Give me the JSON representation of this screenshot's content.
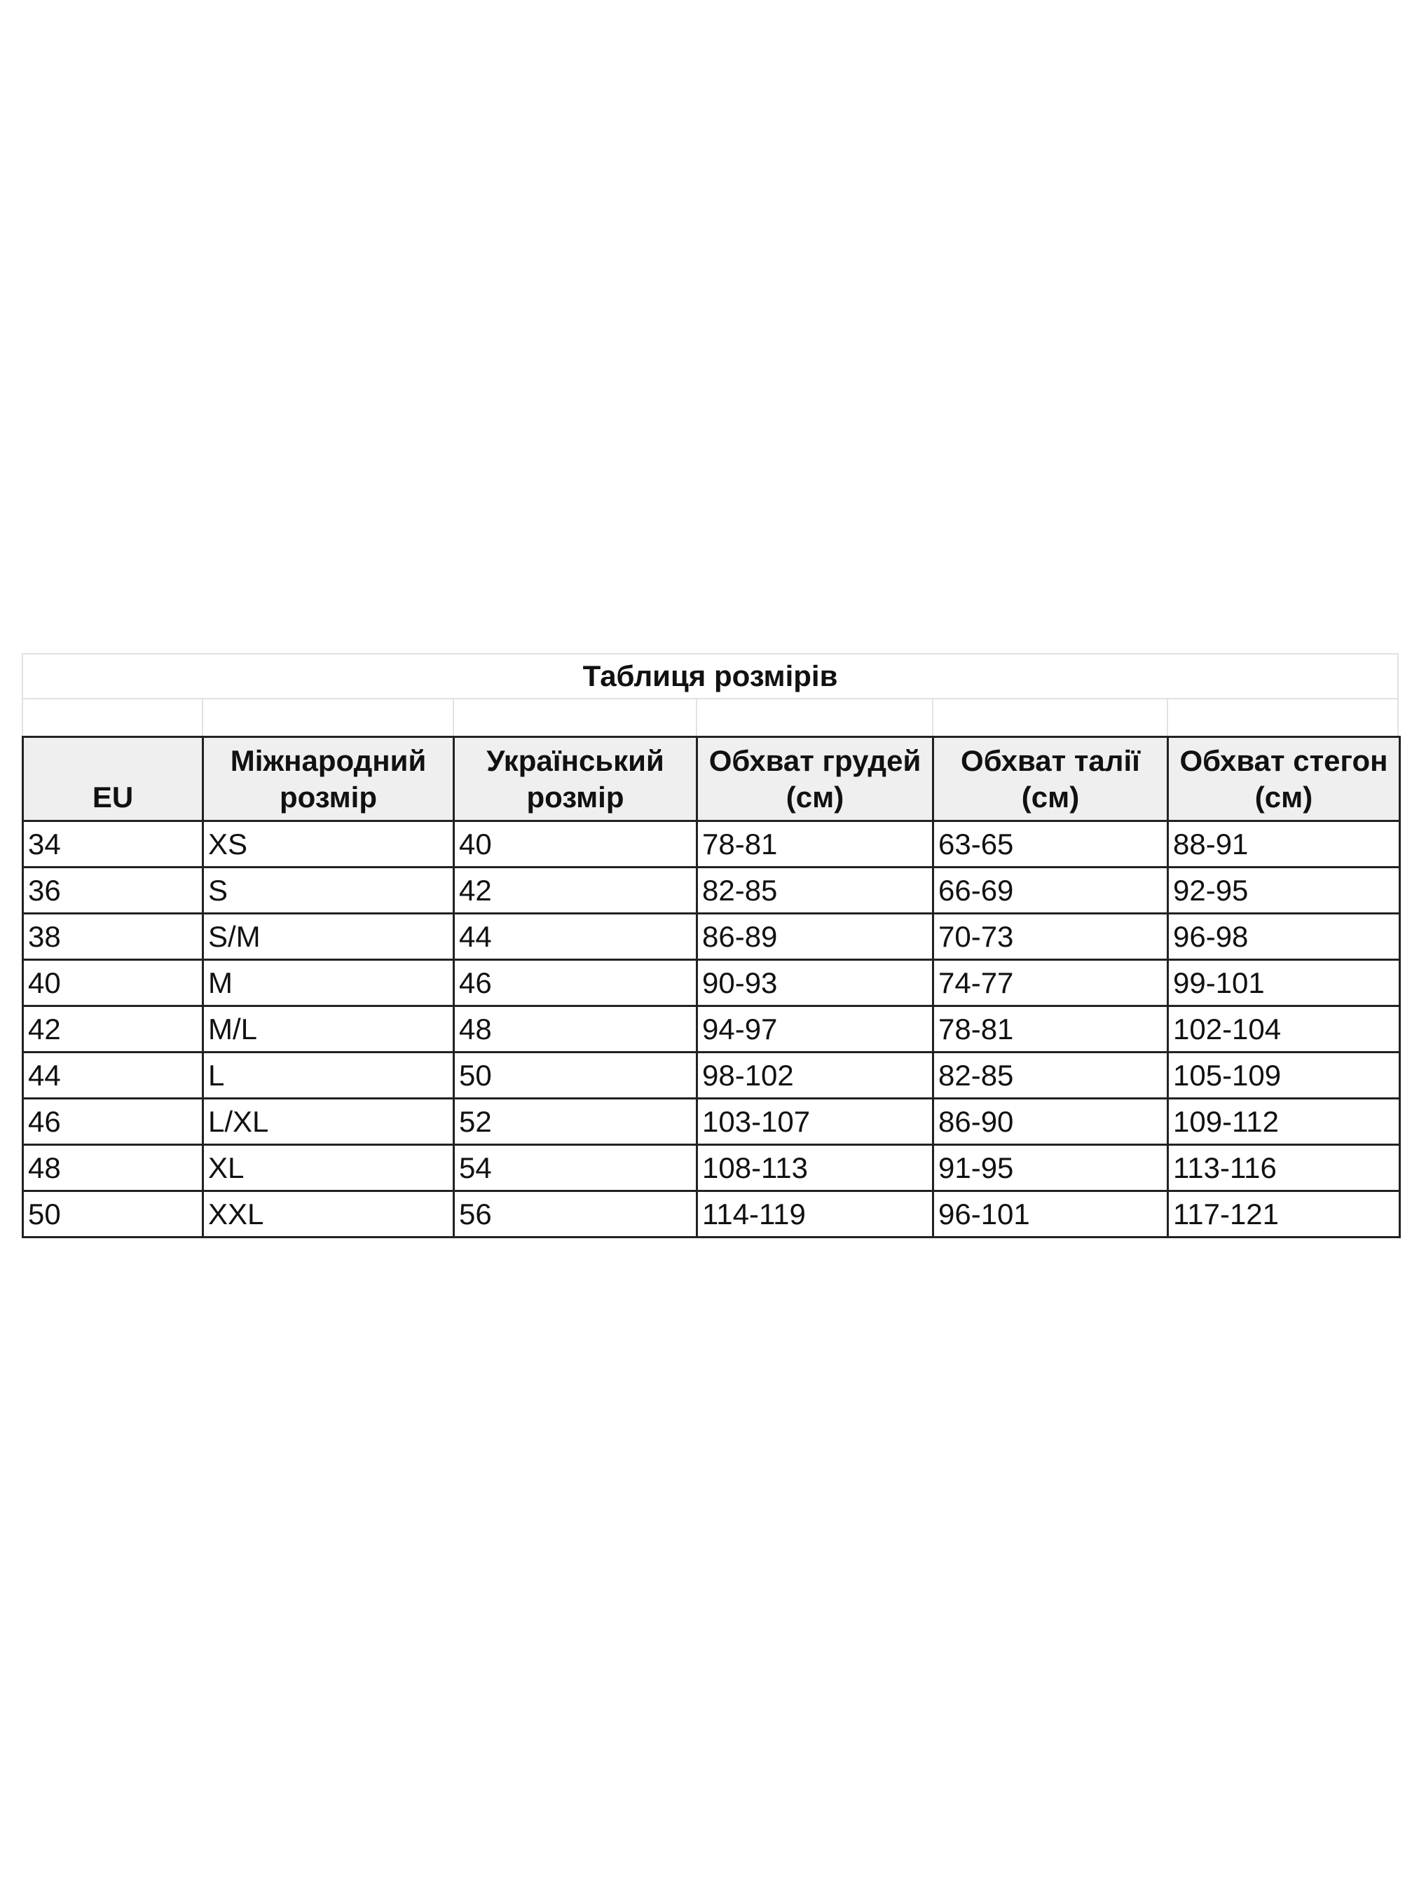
{
  "title": "Таблиця розмірів",
  "columns": [
    "EU",
    "Міжнародний розмір",
    "Український розмір",
    "Обхват грудей (см)",
    "Обхват талії (см)",
    "Обхват стегон (см)"
  ],
  "rows": [
    [
      "34",
      "XS",
      "40",
      "78-81",
      "63-65",
      "88-91"
    ],
    [
      "36",
      "S",
      "42",
      "82-85",
      "66-69",
      "92-95"
    ],
    [
      "38",
      "S/M",
      "44",
      "86-89",
      "70-73",
      "96-98"
    ],
    [
      "40",
      "M",
      "46",
      "90-93",
      "74-77",
      "99-101"
    ],
    [
      "42",
      "M/L",
      "48",
      "94-97",
      "78-81",
      "102-104"
    ],
    [
      "44",
      "L",
      "50",
      "98-102",
      "82-85",
      "105-109"
    ],
    [
      "46",
      "L/XL",
      "52",
      "103-107",
      "86-90",
      "109-112"
    ],
    [
      "48",
      "XL",
      "54",
      "108-113",
      "91-95",
      "113-116"
    ],
    [
      "50",
      "XXL",
      "56",
      "114-119",
      "96-101",
      "117-121"
    ]
  ],
  "colors": {
    "header_bg": "#efefef",
    "border": "#222222",
    "light_grid": "#e2e2e2"
  }
}
